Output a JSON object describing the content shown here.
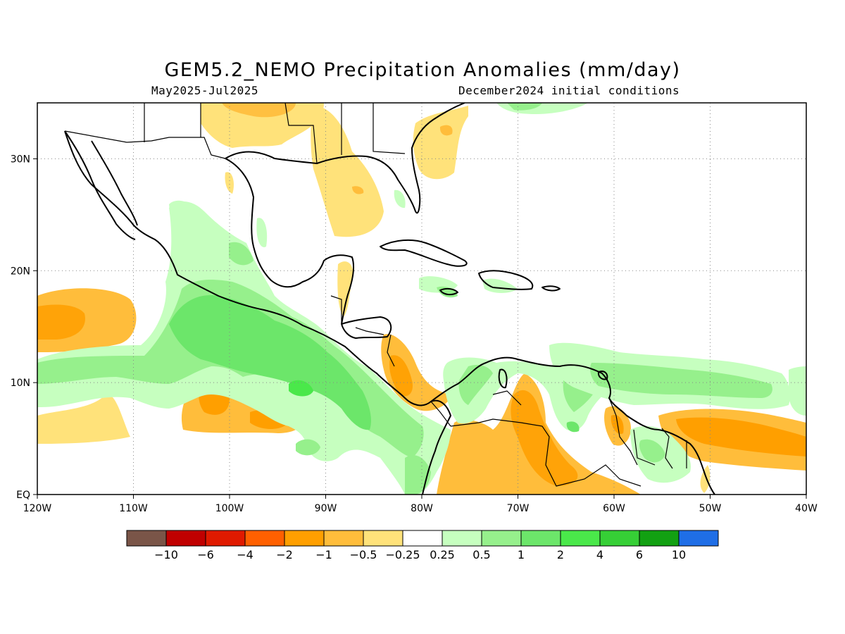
{
  "title": "GEM5.2_NEMO Precipitation Anomalies (mm/day)",
  "subtitle_left": "May2025-Jul2025",
  "subtitle_right": "December2024 initial conditions",
  "map": {
    "lon_range": [
      -120,
      -40
    ],
    "lat_range": [
      0,
      35
    ],
    "x_ticks": [
      {
        "lon": -120,
        "label": "120W"
      },
      {
        "lon": -110,
        "label": "110W"
      },
      {
        "lon": -100,
        "label": "100W"
      },
      {
        "lon": -90,
        "label": "90W"
      },
      {
        "lon": -80,
        "label": "80W"
      },
      {
        "lon": -70,
        "label": "70W"
      },
      {
        "lon": -60,
        "label": "60W"
      },
      {
        "lon": -50,
        "label": "50W"
      },
      {
        "lon": -40,
        "label": "40W"
      }
    ],
    "y_ticks": [
      {
        "lat": 0,
        "label": "EQ"
      },
      {
        "lat": 10,
        "label": "10N"
      },
      {
        "lat": 20,
        "label": "20N"
      },
      {
        "lat": 30,
        "label": "30N"
      }
    ],
    "grid": "dotted"
  },
  "colorbar": {
    "colors": [
      "#7a5548",
      "#c00000",
      "#e01a00",
      "#ff6000",
      "#ff9f00",
      "#ffbd3b",
      "#ffe27a",
      "#ffffff",
      "#c6ffbf",
      "#96f08c",
      "#6ce66a",
      "#4ae84a",
      "#36cf36",
      "#12a012",
      "#1f6ee6"
    ],
    "labels": [
      "−10",
      "−6",
      "−4",
      "−2",
      "−1",
      "−0.5",
      "−0.25",
      "0.25",
      "0.5",
      "1",
      "2",
      "4",
      "6",
      "10"
    ]
  }
}
